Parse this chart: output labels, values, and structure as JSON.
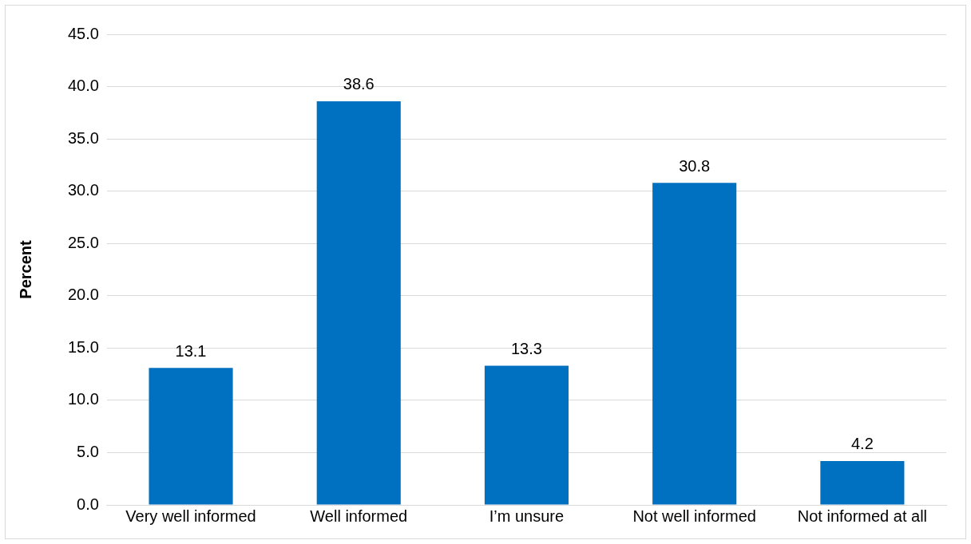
{
  "chart_data": {
    "type": "bar",
    "ylabel": "Percent",
    "categories": [
      "Very well informed",
      "Well informed",
      "I’m unsure",
      "Not well informed",
      "Not informed at all"
    ],
    "values": [
      13.1,
      38.6,
      13.3,
      30.8,
      4.2
    ],
    "color": "#0070c0",
    "ylim": [
      0,
      45
    ],
    "yticks": [
      {
        "value": 0,
        "label": "0.0"
      },
      {
        "value": 5,
        "label": "5.0"
      },
      {
        "value": 10,
        "label": "10.0"
      },
      {
        "value": 15,
        "label": "15.0"
      },
      {
        "value": 20,
        "label": "20.0"
      },
      {
        "value": 25,
        "label": "25.0"
      },
      {
        "value": 30,
        "label": "30.0"
      },
      {
        "value": 35,
        "label": "35.0"
      },
      {
        "value": 40,
        "label": "40.0"
      },
      {
        "value": 45,
        "label": "45.0"
      }
    ],
    "grid": "y",
    "data_labels": true
  }
}
